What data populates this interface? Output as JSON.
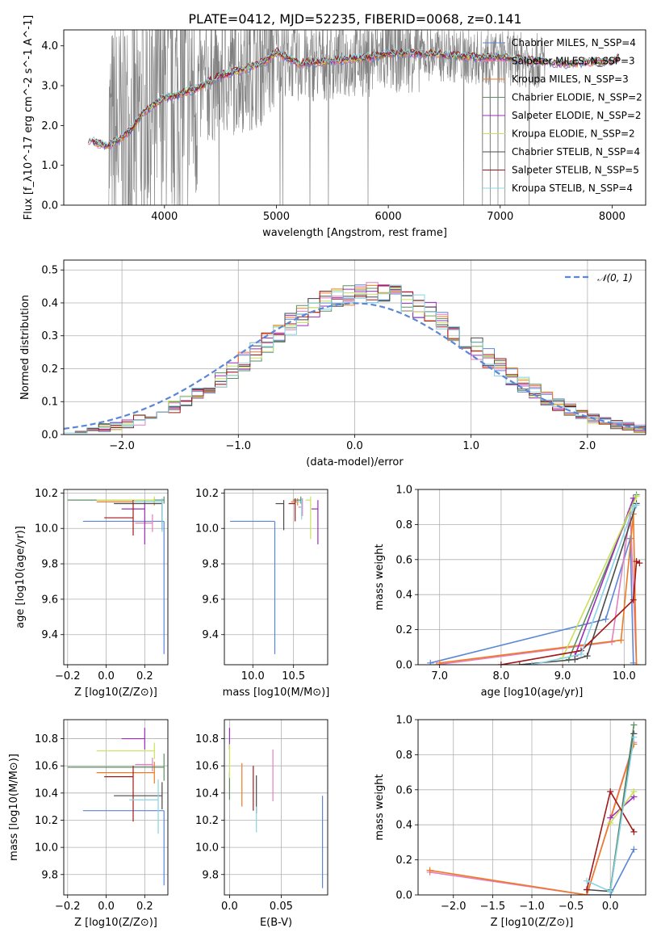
{
  "figure": {
    "title": "PLATE=0412, MJD=52235, FIBERID=0068, z=0.141"
  },
  "series_colors": {
    "Chabrier MILES": "#5b86d6",
    "Salpeter MILES": "#e27fc1",
    "Kroupa MILES": "#f07a22",
    "Chabrier ELODIE": "#5c8f63",
    "Salpeter ELODIE": "#9a2fb8",
    "Kroupa ELODIE": "#c9e05a",
    "Chabrier STELIB": "#4a4a4a",
    "Salpeter STELIB": "#a01818",
    "Kroupa STELIB": "#88d4e4"
  },
  "chart_data": [
    {
      "id": "spectrum",
      "type": "line",
      "xlabel": "wavelength [Angstrom, rest frame]",
      "ylabel": "Flux [f_λ10^-17 erg cm^-2 s^-1 A^-1]",
      "xlim": [
        3100,
        8300
      ],
      "ylim": [
        0,
        4.4
      ],
      "xticks": [
        4000,
        5000,
        6000,
        7000,
        8000
      ],
      "yticks": [
        0,
        1,
        2,
        3,
        4
      ],
      "grid": false,
      "legend_position": "top-right",
      "legend": [
        "Chabrier MILES, N_SSP=4",
        "Salpeter MILES, N_SSP=3",
        "Kroupa MILES, N_SSP=3",
        "Chabrier ELODIE, N_SSP=2",
        "Salpeter ELODIE, N_SSP=2",
        "Kroupa ELODIE, N_SSP=2",
        "Chabrier STELIB, N_SSP=4",
        "Salpeter STELIB, N_SSP=5",
        "Kroupa STELIB, N_SSP=4"
      ],
      "observed_color": "#808080",
      "model_continuum": {
        "x": [
          3320,
          3400,
          3500,
          3600,
          3700,
          3800,
          3900,
          4000,
          4100,
          4200,
          4300,
          4400,
          4500,
          4700,
          4900,
          5000,
          5200,
          5400,
          5600,
          5800,
          6000,
          6200,
          6400,
          6600,
          6800,
          7000,
          7200,
          7400,
          7600,
          7800,
          8000,
          8060
        ],
        "y": [
          1.65,
          1.55,
          1.5,
          1.65,
          1.9,
          2.3,
          2.5,
          2.7,
          2.75,
          2.85,
          2.95,
          3.1,
          3.25,
          3.4,
          3.6,
          3.85,
          3.55,
          3.6,
          3.65,
          3.7,
          3.8,
          3.82,
          3.8,
          3.75,
          3.7,
          3.72,
          3.65,
          3.6,
          3.55,
          3.6,
          3.6,
          3.7
        ]
      },
      "observed_envelope": {
        "x_start": 3500,
        "x_end": 7400,
        "note_free": true
      }
    },
    {
      "id": "residuals",
      "type": "histogram",
      "xlabel": "(data-model)/error",
      "ylabel": "Normed distribution",
      "xlim": [
        -2.5,
        2.5
      ],
      "ylim": [
        0,
        0.53
      ],
      "xticks": [
        -2,
        -1,
        0,
        1,
        2
      ],
      "yticks": [
        0.0,
        0.1,
        0.2,
        0.3,
        0.4,
        0.5
      ],
      "grid": true,
      "legend_position": "top-right",
      "reference_label": "𝒩(0, 1)",
      "bin_width": 0.1,
      "x_start": -2.5
    },
    {
      "id": "age_vs_Z",
      "type": "errorbar",
      "xlabel": "Z [log10(Z/Z⊙)]",
      "ylabel": "age [log10(age/yr)]",
      "xlim": [
        -0.22,
        0.32
      ],
      "ylim": [
        9.23,
        10.22
      ],
      "xticks": [
        -0.2,
        0.0,
        0.2
      ],
      "yticks": [
        9.4,
        9.6,
        9.8,
        10.0,
        10.2
      ],
      "grid": true,
      "points": [
        {
          "series": "Chabrier MILES",
          "x": 0.3,
          "y": 10.04,
          "x_err": 0.42,
          "y_err": [
            0.75,
            0.0
          ]
        },
        {
          "series": "Salpeter MILES",
          "x": 0.24,
          "y": 10.03,
          "x_err": 0.09,
          "y_err": [
            0.05,
            0.05
          ]
        },
        {
          "series": "Kroupa MILES",
          "x": 0.25,
          "y": 10.15,
          "x_err": 0.3,
          "y_err": [
            0.02,
            0.02
          ]
        },
        {
          "series": "Chabrier ELODIE",
          "x": 0.3,
          "y": 10.16,
          "x_err": 0.5,
          "y_err": [
            0.02,
            0.02
          ]
        },
        {
          "series": "Salpeter ELODIE",
          "x": 0.2,
          "y": 10.11,
          "x_err": 0.12,
          "y_err": [
            0.2,
            0.05
          ]
        },
        {
          "series": "Kroupa ELODIE",
          "x": 0.25,
          "y": 10.16,
          "x_err": 0.3,
          "y_err": [
            0.02,
            0.02
          ]
        },
        {
          "series": "Chabrier STELIB",
          "x": 0.29,
          "y": 10.14,
          "x_err": 0.25,
          "y_err": [
            0.15,
            0.02
          ]
        },
        {
          "series": "Salpeter STELIB",
          "x": 0.14,
          "y": 10.06,
          "x_err": 0.15,
          "y_err": [
            0.1,
            0.1
          ]
        },
        {
          "series": "Kroupa STELIB",
          "x": 0.29,
          "y": 10.15,
          "x_err": 0.15,
          "y_err": [
            0.17,
            0.02
          ]
        }
      ]
    },
    {
      "id": "age_vs_mass",
      "type": "errorbar",
      "xlabel": "mass [log10(M/M⊙)]",
      "ylabel": "",
      "xlim": [
        9.65,
        10.92
      ],
      "ylim": [
        9.23,
        10.22
      ],
      "xticks": [
        10.0,
        10.5
      ],
      "yticks": [
        9.4,
        9.6,
        9.8,
        10.0,
        10.2
      ],
      "grid": true,
      "points": [
        {
          "series": "Chabrier MILES",
          "x": 10.27,
          "y": 10.04,
          "x_err": 0.55,
          "y_err": [
            0.75,
            0.0
          ]
        },
        {
          "series": "Salpeter MILES",
          "x": 10.61,
          "y": 10.12,
          "x_err": 0.05,
          "y_err": [
            0.05,
            0.05
          ]
        },
        {
          "series": "Kroupa MILES",
          "x": 10.55,
          "y": 10.15,
          "x_err": 0.08,
          "y_err": [
            0.02,
            0.02
          ]
        },
        {
          "series": "Chabrier ELODIE",
          "x": 10.59,
          "y": 10.16,
          "x_err": 0.1,
          "y_err": [
            0.02,
            0.02
          ]
        },
        {
          "series": "Salpeter ELODIE",
          "x": 10.8,
          "y": 10.11,
          "x_err": 0.08,
          "y_err": [
            0.2,
            0.05
          ]
        },
        {
          "series": "Kroupa ELODIE",
          "x": 10.71,
          "y": 10.16,
          "x_err": 0.06,
          "y_err": [
            0.22,
            0.02
          ]
        },
        {
          "series": "Chabrier STELIB",
          "x": 10.38,
          "y": 10.14,
          "x_err": 0.1,
          "y_err": [
            0.15,
            0.02
          ]
        },
        {
          "series": "Salpeter STELIB",
          "x": 10.52,
          "y": 10.14,
          "x_err": 0.08,
          "y_err": [
            0.1,
            0.03
          ]
        },
        {
          "series": "Kroupa STELIB",
          "x": 10.6,
          "y": 10.15,
          "x_err": 0.06,
          "y_err": [
            0.1,
            0.02
          ]
        }
      ]
    },
    {
      "id": "massweight_vs_age",
      "type": "line",
      "xlabel": "age [log10(age/yr)]",
      "ylabel": "mass weight",
      "xlim": [
        6.65,
        10.35
      ],
      "ylim": [
        0,
        1.0
      ],
      "xticks": [
        7,
        8,
        9,
        10
      ],
      "yticks": [
        0.0,
        0.2,
        0.4,
        0.6,
        0.8,
        1.0
      ],
      "grid": true,
      "series": [
        {
          "series": "Chabrier MILES",
          "x": [
            6.85,
            9.7,
            10.1,
            10.15
          ],
          "y": [
            0.01,
            0.26,
            0.72,
            0.01
          ]
        },
        {
          "series": "Salpeter MILES",
          "x": [
            6.95,
            9.8,
            10.1,
            10.2
          ],
          "y": [
            0.0,
            0.13,
            0.87,
            0.0
          ]
        },
        {
          "series": "Kroupa MILES",
          "x": [
            7.0,
            9.95,
            10.15,
            10.2
          ],
          "y": [
            0.01,
            0.14,
            0.86,
            0.0
          ]
        },
        {
          "series": "Chabrier ELODIE",
          "x": [
            9.1,
            10.2
          ],
          "y": [
            0.03,
            0.97
          ]
        },
        {
          "series": "Salpeter ELODIE",
          "x": [
            9.2,
            10.15
          ],
          "y": [
            0.05,
            0.95
          ]
        },
        {
          "series": "Kroupa ELODIE",
          "x": [
            9.0,
            10.2
          ],
          "y": [
            0.04,
            0.96
          ]
        },
        {
          "series": "Chabrier STELIB",
          "x": [
            8.3,
            9.2,
            9.4,
            10.2
          ],
          "y": [
            0.0,
            0.03,
            0.05,
            0.92
          ]
        },
        {
          "series": "Salpeter STELIB",
          "x": [
            8.0,
            9.3,
            10.15,
            10.2,
            10.25
          ],
          "y": [
            0.0,
            0.08,
            0.37,
            0.59,
            0.58
          ]
        },
        {
          "series": "Kroupa STELIB",
          "x": [
            8.5,
            9.3,
            10.15,
            10.2
          ],
          "y": [
            0.0,
            0.06,
            0.9,
            0.91
          ]
        }
      ]
    },
    {
      "id": "mass_vs_Z",
      "type": "errorbar",
      "xlabel": "Z [log10(Z/Z⊙)]",
      "ylabel": "mass [log10(M/M⊙)]",
      "xlim": [
        -0.22,
        0.32
      ],
      "ylim": [
        9.65,
        10.94
      ],
      "xticks": [
        -0.2,
        0.0,
        0.2
      ],
      "yticks": [
        9.8,
        10.0,
        10.2,
        10.4,
        10.6,
        10.8
      ],
      "grid": true,
      "points": [
        {
          "series": "Chabrier MILES",
          "x": 0.3,
          "y": 10.27,
          "x_err": 0.42,
          "y_err": [
            0.55,
            0.0
          ]
        },
        {
          "series": "Salpeter MILES",
          "x": 0.24,
          "y": 10.61,
          "x_err": 0.09,
          "y_err": [
            0.05,
            0.05
          ]
        },
        {
          "series": "Kroupa MILES",
          "x": 0.25,
          "y": 10.55,
          "x_err": 0.3,
          "y_err": [
            0.08,
            0.08
          ]
        },
        {
          "series": "Chabrier ELODIE",
          "x": 0.3,
          "y": 10.59,
          "x_err": 0.5,
          "y_err": [
            0.1,
            0.1
          ]
        },
        {
          "series": "Salpeter ELODIE",
          "x": 0.2,
          "y": 10.8,
          "x_err": 0.12,
          "y_err": [
            0.08,
            0.08
          ]
        },
        {
          "series": "Kroupa ELODIE",
          "x": 0.25,
          "y": 10.71,
          "x_err": 0.3,
          "y_err": [
            0.06,
            0.06
          ]
        },
        {
          "series": "Chabrier STELIB",
          "x": 0.29,
          "y": 10.38,
          "x_err": 0.25,
          "y_err": [
            0.1,
            0.1
          ]
        },
        {
          "series": "Salpeter STELIB",
          "x": 0.14,
          "y": 10.52,
          "x_err": 0.15,
          "y_err": [
            0.33,
            0.08
          ]
        },
        {
          "series": "Kroupa STELIB",
          "x": 0.27,
          "y": 10.35,
          "x_err": 0.15,
          "y_err": [
            0.25,
            0.15
          ]
        }
      ]
    },
    {
      "id": "mass_vs_EBV",
      "type": "errorbar",
      "xlabel": "E(B-V)",
      "ylabel": "",
      "xlim": [
        -0.005,
        0.095
      ],
      "ylim": [
        9.65,
        10.94
      ],
      "xticks": [
        0.0,
        0.05
      ],
      "yticks": [
        9.8,
        10.0,
        10.2,
        10.4,
        10.6,
        10.8
      ],
      "grid": true,
      "points": [
        {
          "series": "Chabrier MILES",
          "x": 0.09,
          "y": 10.2,
          "y_err": [
            0.5,
            0.18
          ]
        },
        {
          "series": "Salpeter MILES",
          "x": 0.042,
          "y": 10.57,
          "y_err": [
            0.23,
            0.15
          ]
        },
        {
          "series": "Kroupa MILES",
          "x": 0.012,
          "y": 10.4,
          "y_err": [
            0.1,
            0.22
          ]
        },
        {
          "series": "Chabrier ELODIE",
          "x": 0.0,
          "y": 10.45,
          "y_err": [
            0.1,
            0.1
          ]
        },
        {
          "series": "Salpeter ELODIE",
          "x": 0.0,
          "y": 10.8,
          "y_err": [
            0.08,
            0.08
          ]
        },
        {
          "series": "Kroupa ELODIE",
          "x": 0.0,
          "y": 10.66,
          "y_err": [
            0.15,
            0.1
          ]
        },
        {
          "series": "Chabrier STELIB",
          "x": 0.026,
          "y": 10.4,
          "y_err": [
            0.15,
            0.13
          ]
        },
        {
          "series": "Salpeter STELIB",
          "x": 0.023,
          "y": 10.43,
          "y_err": [
            0.16,
            0.17
          ]
        },
        {
          "series": "Kroupa STELIB",
          "x": 0.026,
          "y": 10.2,
          "y_err": [
            0.09,
            0.1
          ]
        }
      ]
    },
    {
      "id": "massweight_vs_Z",
      "type": "line",
      "xlabel": "Z [log10(Z/Z⊙)]",
      "ylabel": "mass weight",
      "xlim": [
        -2.45,
        0.45
      ],
      "ylim": [
        0,
        1.0
      ],
      "xticks": [
        -2.0,
        -1.5,
        -1.0,
        -0.5,
        0.0
      ],
      "yticks": [
        0.0,
        0.2,
        0.4,
        0.6,
        0.8,
        1.0
      ],
      "grid": true,
      "series": [
        {
          "series": "Chabrier MILES",
          "x": [
            -0.3,
            0.0,
            0.3
          ],
          "y": [
            0.0,
            0.0,
            0.26
          ]
        },
        {
          "series": "Salpeter MILES",
          "x": [
            -2.3,
            -0.3,
            0.3
          ],
          "y": [
            0.13,
            0.0,
            0.87
          ]
        },
        {
          "series": "Kroupa MILES",
          "x": [
            -2.3,
            -0.3,
            0.3
          ],
          "y": [
            0.14,
            0.0,
            0.86
          ]
        },
        {
          "series": "Chabrier ELODIE",
          "x": [
            0.0,
            0.3
          ],
          "y": [
            0.03,
            0.97
          ]
        },
        {
          "series": "Salpeter ELODIE",
          "x": [
            0.0,
            0.3
          ],
          "y": [
            0.44,
            0.56
          ]
        },
        {
          "series": "Kroupa ELODIE",
          "x": [
            0.0,
            0.3
          ],
          "y": [
            0.41,
            0.59
          ]
        },
        {
          "series": "Chabrier STELIB",
          "x": [
            -0.3,
            0.0,
            0.3
          ],
          "y": [
            0.03,
            0.02,
            0.92
          ]
        },
        {
          "series": "Salpeter STELIB",
          "x": [
            -0.3,
            0.0,
            0.3
          ],
          "y": [
            0.03,
            0.59,
            0.36
          ]
        },
        {
          "series": "Kroupa STELIB",
          "x": [
            -0.3,
            0.0,
            0.3
          ],
          "y": [
            0.08,
            0.02,
            0.9
          ]
        }
      ]
    }
  ]
}
